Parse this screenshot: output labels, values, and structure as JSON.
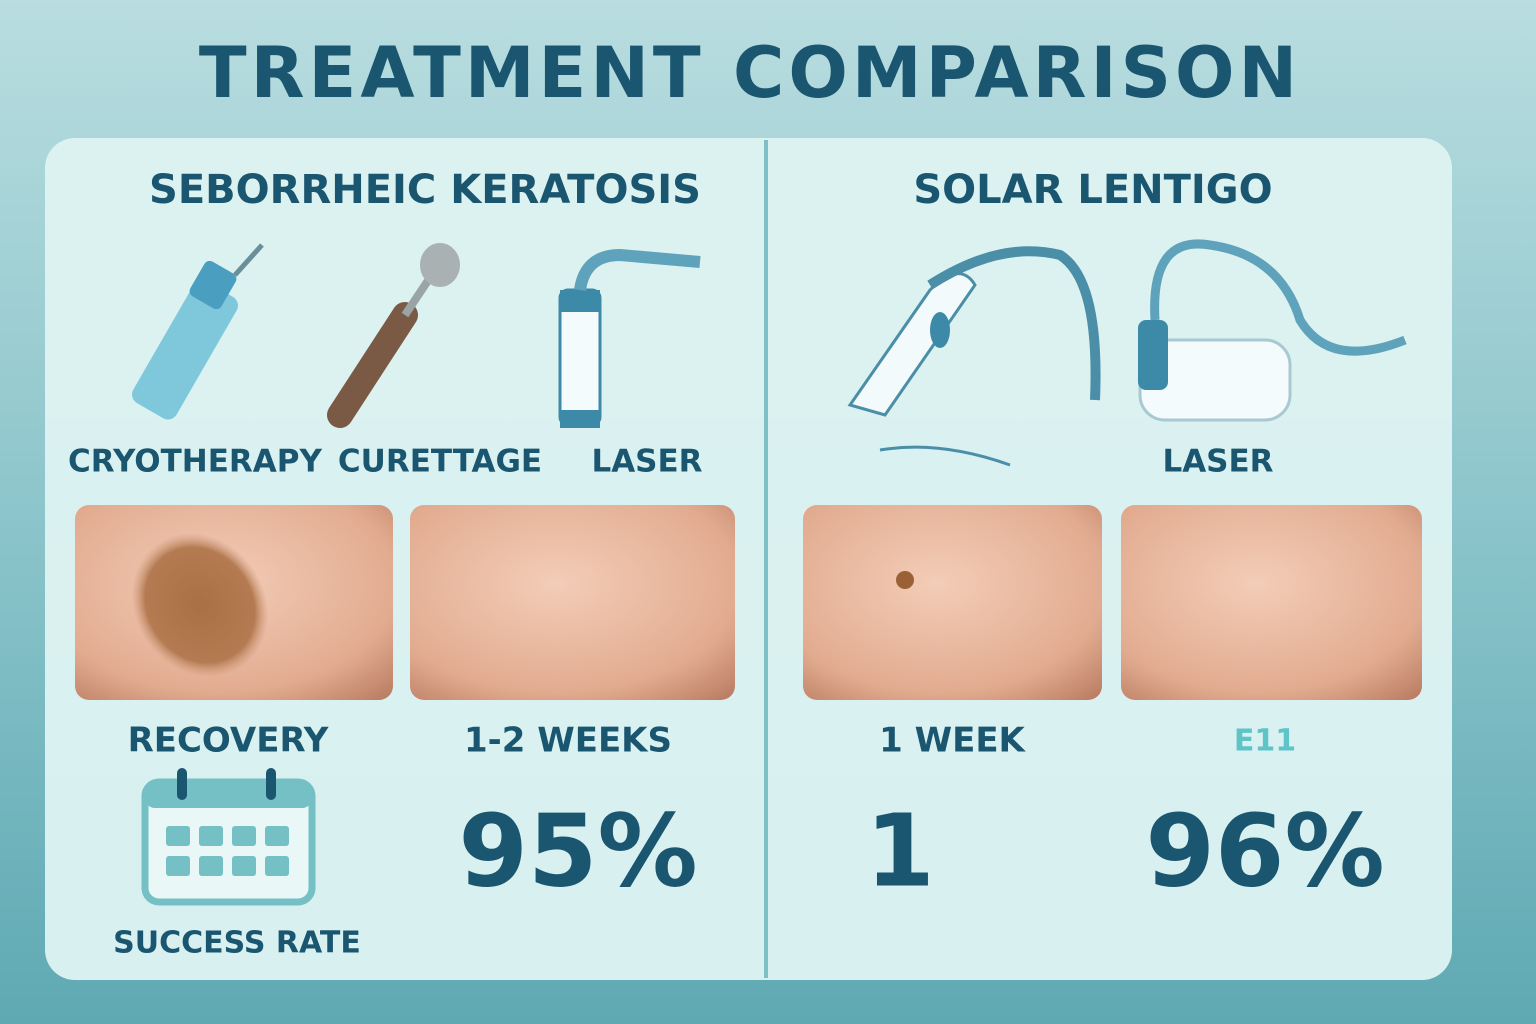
{
  "header": {
    "title": "TREATMENT COMPARISON"
  },
  "panels": [
    {
      "heading": "SEBORRHEIC KERATOSIS",
      "treatments": [
        "CRYOTHERAPY",
        "CURETTAGE",
        "LASER"
      ],
      "recovery_label": "RECOVERY",
      "recovery_time": "1-2 WEEKS",
      "success_rate": "95%",
      "success_label": "SUCCESS RATE"
    },
    {
      "heading": "SOLAR LENTIGO",
      "treatments": [
        "LASER"
      ],
      "recovery_time": "1 WEEK",
      "badge": "E11",
      "value": "1",
      "success_rate": "96%"
    }
  ]
}
